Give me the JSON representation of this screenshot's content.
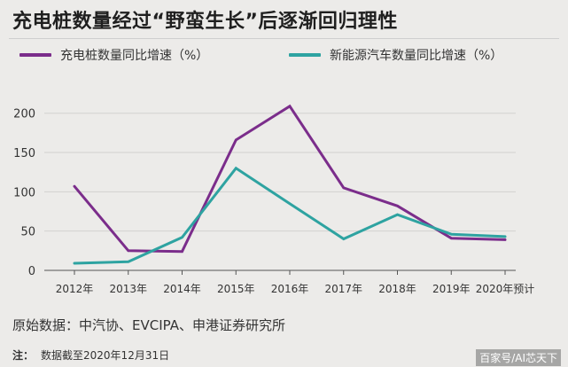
{
  "title": "充电桩数量经过“野蛮生长”后逐渐回归理性",
  "chart_data": {
    "type": "line",
    "categories": [
      "2012年",
      "2013年",
      "2014年",
      "2015年",
      "2016年",
      "2017年",
      "2018年",
      "2019年",
      "2020年预计"
    ],
    "series": [
      {
        "name": "充电桩数量同比增速（%）",
        "color": "#7b2d8b",
        "values": [
          107,
          25,
          24,
          166,
          209,
          105,
          82,
          41,
          39
        ]
      },
      {
        "name": "新能源汽车数量同比增速（%）",
        "color": "#2ea3a1",
        "values": [
          9,
          11,
          42,
          130,
          85,
          40,
          71,
          46,
          43
        ]
      }
    ],
    "yticks": [
      0,
      50,
      100,
      150,
      200
    ],
    "ylim": [
      0,
      220
    ],
    "grid": true
  },
  "source": "原始数据：中汽协、EVCIPA、申港证券研究所",
  "note_label": "注：",
  "note_text": "数据截至2020年12月31日",
  "watermark": "百家号/AI芯天下"
}
